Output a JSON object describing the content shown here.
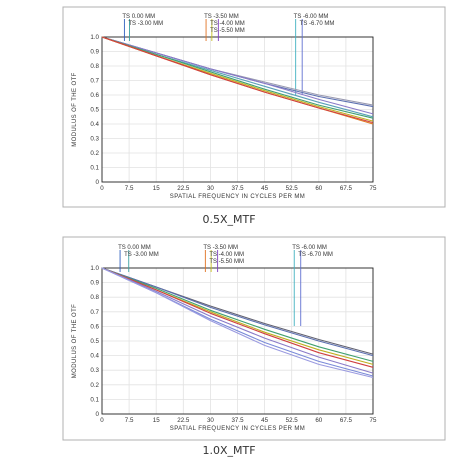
{
  "chart_data": [
    {
      "type": "line",
      "caption": "0.5X_MTF",
      "xlabel": "SPATIAL FREQUENCY IN CYCLES PER MM",
      "ylabel": "MODULUS OF THE OTF",
      "xlim": [
        0,
        75
      ],
      "ylim": [
        0,
        1
      ],
      "xticks": [
        "0",
        "7.5",
        "15",
        "22.5",
        "30",
        "37.5",
        "45",
        "52.5",
        "60",
        "67.5",
        "75"
      ],
      "yticks": [
        "0",
        "0.1",
        "0.2",
        "0.3",
        "0.4",
        "0.5",
        "0.6",
        "0.7",
        "0.8",
        "0.9",
        "1.0"
      ],
      "grid": true,
      "legend": [
        {
          "label": "TS  0.00  MM",
          "x": 6.2,
          "color": "#2f5fbf"
        },
        {
          "label": "TS  -3.00 MM",
          "x": 7.6,
          "color": "#3aa0a0"
        },
        {
          "label": "TS  -3.50  MM",
          "x": 28.8,
          "color": "#e07020"
        },
        {
          "label": "TS  -4.00 MM",
          "x": 30.4,
          "color": "#c8c020"
        },
        {
          "label": "TS  -5.50 MM",
          "x": 32.2,
          "color": "#8040c0"
        },
        {
          "label": "TS  -6.00 MM",
          "x": 53.6,
          "color": "#40b0c0"
        },
        {
          "label": "TS  -6.70 MM",
          "x": 55.4,
          "color": "#6070d0"
        }
      ],
      "series": [
        {
          "color": "#9a9ab0",
          "x": [
            0,
            15,
            30,
            45,
            60,
            75
          ],
          "y": [
            1.0,
            0.89,
            0.78,
            0.69,
            0.6,
            0.53
          ]
        },
        {
          "color": "#5b6fb0",
          "x": [
            0,
            15,
            30,
            45,
            60,
            75
          ],
          "y": [
            1.0,
            0.89,
            0.78,
            0.68,
            0.59,
            0.52
          ]
        },
        {
          "color": "#8a7ac8",
          "x": [
            0,
            15,
            30,
            45,
            60,
            75
          ],
          "y": [
            1.0,
            0.89,
            0.78,
            0.68,
            0.57,
            0.47
          ]
        },
        {
          "color": "#5aa0b8",
          "x": [
            0,
            15,
            30,
            45,
            60,
            75
          ],
          "y": [
            1.0,
            0.88,
            0.77,
            0.66,
            0.55,
            0.45
          ]
        },
        {
          "color": "#40a070",
          "x": [
            0,
            15,
            30,
            45,
            60,
            75
          ],
          "y": [
            1.0,
            0.88,
            0.76,
            0.64,
            0.53,
            0.44
          ]
        },
        {
          "color": "#c0b020",
          "x": [
            0,
            15,
            30,
            45,
            60,
            75
          ],
          "y": [
            1.0,
            0.87,
            0.75,
            0.63,
            0.52,
            0.42
          ]
        },
        {
          "color": "#e07820",
          "x": [
            0,
            15,
            30,
            45,
            60,
            75
          ],
          "y": [
            1.0,
            0.87,
            0.74,
            0.62,
            0.51,
            0.4
          ]
        },
        {
          "color": "#d04040",
          "x": [
            0,
            15,
            30,
            45,
            60,
            75
          ],
          "y": [
            1.0,
            0.87,
            0.74,
            0.62,
            0.51,
            0.41
          ]
        }
      ]
    },
    {
      "type": "line",
      "caption": "1.0X_MTF",
      "xlabel": "SPATIAL FREQUENCY IN CYCLES PER MM",
      "ylabel": "MODULUS OF THE OTF",
      "xlim": [
        0,
        75
      ],
      "ylim": [
        0,
        1
      ],
      "xticks": [
        "0",
        "7.5",
        "15",
        "22.5",
        "30",
        "37.5",
        "45",
        "52.5",
        "60",
        "67.5",
        "75"
      ],
      "yticks": [
        "0",
        "0.1",
        "0.2",
        "0.3",
        "0.4",
        "0.5",
        "0.6",
        "0.7",
        "0.8",
        "0.9",
        "1.0"
      ],
      "grid": true,
      "legend": [
        {
          "label": "TS  0.00  MM",
          "x": 5.0,
          "color": "#2f5fbf"
        },
        {
          "label": "TS  -3.00 MM",
          "x": 7.4,
          "color": "#3aa0a0"
        },
        {
          "label": "TS  -3.50  MM",
          "x": 28.6,
          "color": "#e07020"
        },
        {
          "label": "TS  -4.00 MM",
          "x": 30.2,
          "color": "#c8c020"
        },
        {
          "label": "TS  -5.50 MM",
          "x": 32.0,
          "color": "#8040c0"
        },
        {
          "label": "TS  -6.00 MM",
          "x": 53.2,
          "color": "#40b0c0"
        },
        {
          "label": "TS  -6.70 MM",
          "x": 55.0,
          "color": "#6070d0"
        }
      ],
      "series": [
        {
          "color": "#606070",
          "x": [
            0,
            15,
            30,
            45,
            60,
            75
          ],
          "y": [
            1.0,
            0.87,
            0.74,
            0.62,
            0.51,
            0.41
          ]
        },
        {
          "color": "#5b6fb0",
          "x": [
            0,
            15,
            30,
            45,
            60,
            75
          ],
          "y": [
            1.0,
            0.87,
            0.73,
            0.61,
            0.5,
            0.4
          ]
        },
        {
          "color": "#40a070",
          "x": [
            0,
            15,
            30,
            45,
            60,
            75
          ],
          "y": [
            1.0,
            0.86,
            0.71,
            0.58,
            0.46,
            0.36
          ]
        },
        {
          "color": "#c0b020",
          "x": [
            0,
            15,
            30,
            45,
            60,
            75
          ],
          "y": [
            1.0,
            0.85,
            0.7,
            0.56,
            0.44,
            0.34
          ]
        },
        {
          "color": "#d04040",
          "x": [
            0,
            15,
            30,
            45,
            60,
            75
          ],
          "y": [
            1.0,
            0.85,
            0.69,
            0.55,
            0.42,
            0.32
          ]
        },
        {
          "color": "#8a7ac8",
          "x": [
            0,
            15,
            30,
            45,
            60,
            75
          ],
          "y": [
            1.0,
            0.84,
            0.67,
            0.52,
            0.39,
            0.28
          ]
        },
        {
          "color": "#7a8ad8",
          "x": [
            0,
            15,
            30,
            45,
            60,
            75
          ],
          "y": [
            1.0,
            0.83,
            0.65,
            0.49,
            0.36,
            0.26
          ]
        },
        {
          "color": "#9a9ae0",
          "x": [
            0,
            15,
            30,
            45,
            60,
            75
          ],
          "y": [
            1.0,
            0.83,
            0.64,
            0.47,
            0.34,
            0.25
          ]
        }
      ]
    }
  ]
}
